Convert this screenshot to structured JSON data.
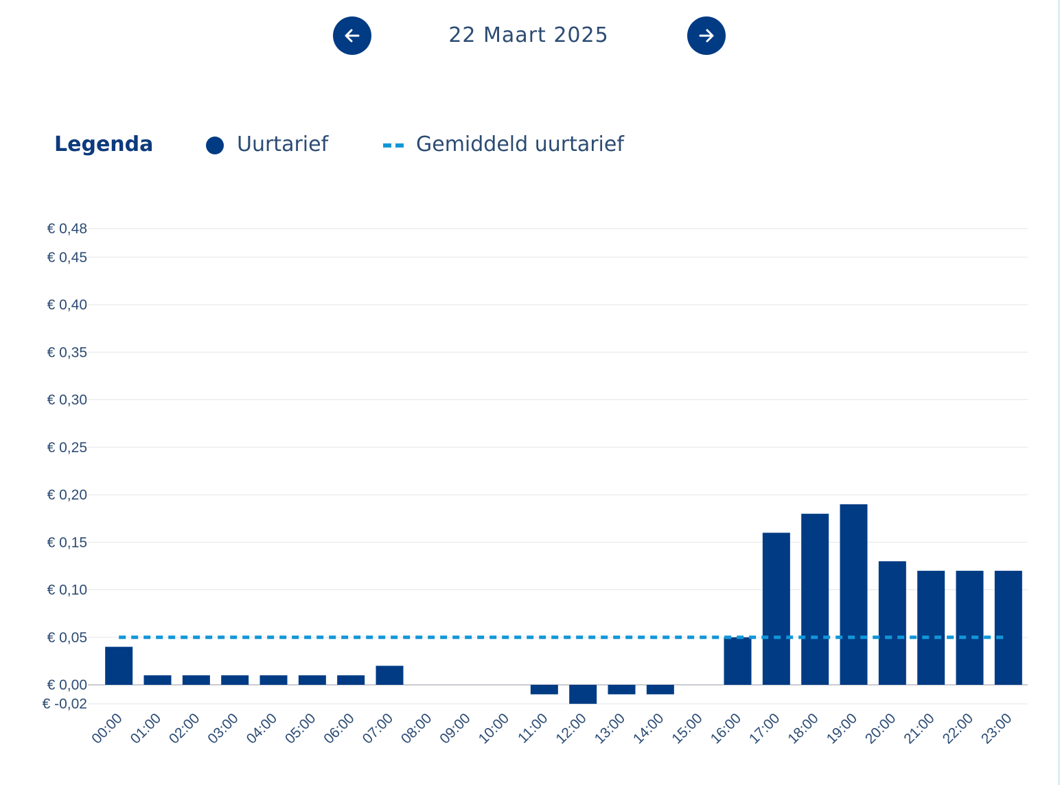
{
  "header": {
    "date": "22 Maart 2025",
    "prev_icon": "arrow-left-icon",
    "next_icon": "arrow-right-icon"
  },
  "legend": {
    "title": "Legenda",
    "items": [
      {
        "label": "Uurtarief",
        "symbol": "dot",
        "color": "#003b84"
      },
      {
        "label": "Gemiddeld uurtarief",
        "symbol": "dashed-line",
        "color": "#1296d8"
      }
    ]
  },
  "chart_data": {
    "type": "bar",
    "categories": [
      "00:00",
      "01:00",
      "02:00",
      "03:00",
      "04:00",
      "05:00",
      "06:00",
      "07:00",
      "08:00",
      "09:00",
      "10:00",
      "11:00",
      "12:00",
      "13:00",
      "14:00",
      "15:00",
      "16:00",
      "17:00",
      "18:00",
      "19:00",
      "20:00",
      "21:00",
      "22:00",
      "23:00"
    ],
    "series": [
      {
        "name": "Uurtarief",
        "color": "#003b84",
        "values": [
          0.04,
          0.01,
          0.01,
          0.01,
          0.01,
          0.01,
          0.01,
          0.02,
          0,
          0,
          0,
          -0.01,
          -0.02,
          -0.01,
          -0.01,
          0,
          0.05,
          0.16,
          0.18,
          0.19,
          0.13,
          0.12,
          0.12,
          0.12
        ]
      }
    ],
    "average": {
      "name": "Gemiddeld uurtarief",
      "value": 0.05,
      "color": "#1296d8",
      "style": "dashed"
    },
    "yticks": [
      -0.02,
      0,
      0.05,
      0.1,
      0.15,
      0.2,
      0.25,
      0.3,
      0.35,
      0.4,
      0.45,
      0.48
    ],
    "ytick_labels": [
      "€ -0,02",
      "€ 0,00",
      "€ 0,05",
      "€ 0,10",
      "€ 0,15",
      "€ 0,20",
      "€ 0,25",
      "€ 0,30",
      "€ 0,35",
      "€ 0,40",
      "€ 0,45",
      "€ 0,48"
    ],
    "ylim": [
      -0.02,
      0.48
    ],
    "grid": true,
    "legend_position": "top-left"
  }
}
